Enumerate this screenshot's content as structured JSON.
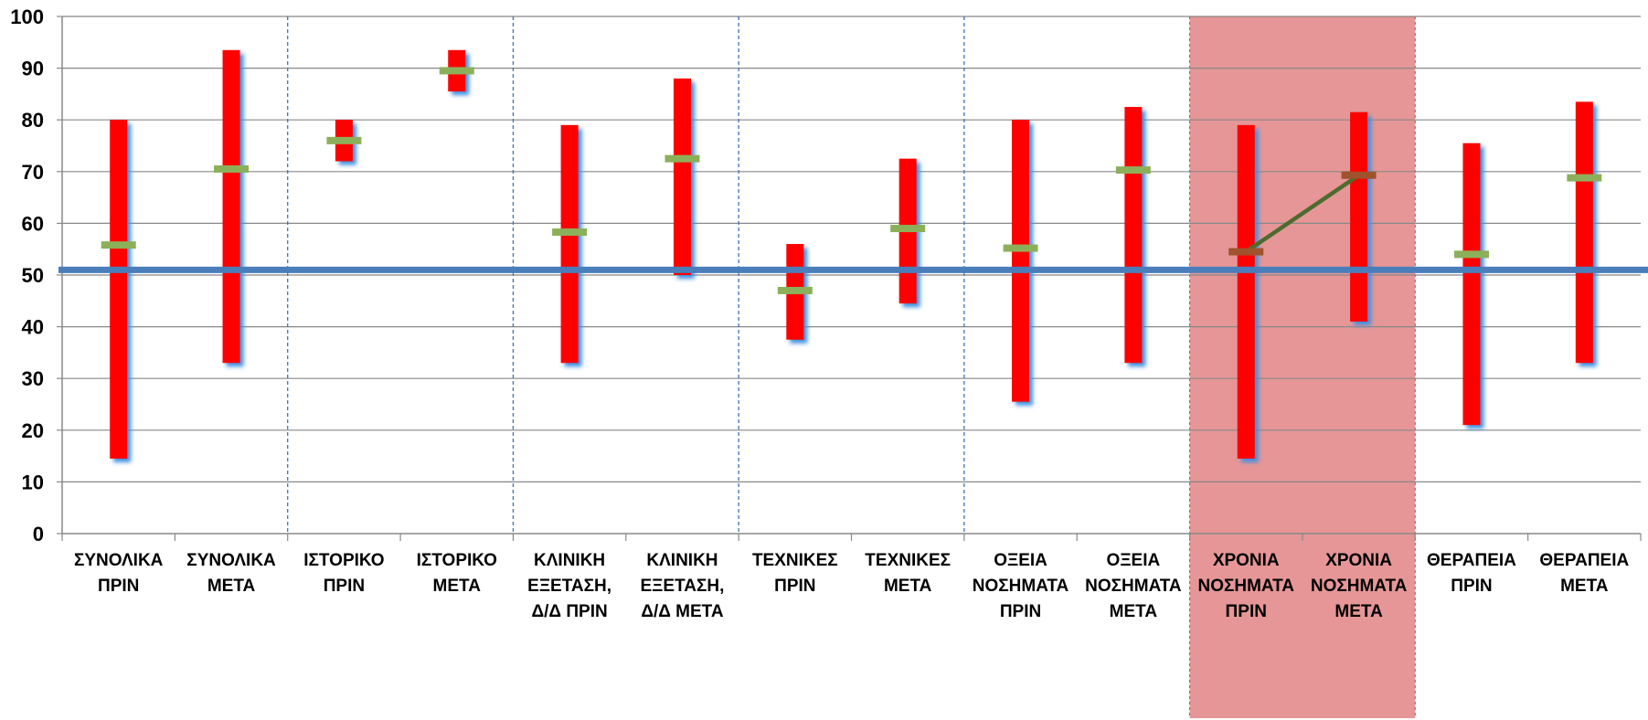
{
  "chart_data": {
    "type": "bar",
    "subtype": "floating range with mean markers",
    "ylim": [
      0,
      100
    ],
    "yticks": [
      0,
      10,
      20,
      30,
      40,
      50,
      60,
      70,
      80,
      90,
      100
    ],
    "grid": true,
    "categories": [
      [
        "ΣΥΝΟΛΙΚΑ",
        "ΠΡΙΝ"
      ],
      [
        "ΣΥΝΟΛΙΚΑ",
        "ΜΕΤΑ"
      ],
      [
        "ΙΣΤΟΡΙΚΟ",
        "ΠΡΙΝ"
      ],
      [
        "ΙΣΤΟΡΙΚΟ",
        "ΜΕΤΑ"
      ],
      [
        "ΚΛΙΝΙΚΗ",
        "ΕΞΕΤΑΣΗ,",
        "Δ/Δ ΠΡΙΝ"
      ],
      [
        "ΚΛΙΝΙΚΗ",
        "ΕΞΕΤΑΣΗ,",
        "Δ/Δ ΜΕΤΑ"
      ],
      [
        "ΤΕΧΝΙΚΕΣ",
        "ΠΡΙΝ"
      ],
      [
        "ΤΕΧΝΙΚΕΣ",
        "ΜΕΤΑ"
      ],
      [
        "ΟΞΕΙΑ",
        "ΝΟΣΗΜΑΤΑ",
        "ΠΡΙΝ"
      ],
      [
        "ΟΞΕΙΑ",
        "ΝΟΣΗΜΑΤΑ",
        "ΜΕΤΑ"
      ],
      [
        "ΧΡΟΝΙΑ",
        "ΝΟΣΗΜΑΤΑ",
        "ΠΡΙΝ"
      ],
      [
        "ΧΡΟΝΙΑ",
        "ΝΟΣΗΜΑΤΑ",
        "ΜΕΤΑ"
      ],
      [
        "ΘΕΡΑΠΕΙΑ",
        "ΠΡΙΝ"
      ],
      [
        "ΘΕΡΑΠΕΙΑ",
        "ΜΕΤΑ"
      ]
    ],
    "ranges": [
      [
        14.5,
        80
      ],
      [
        33,
        93.5
      ],
      [
        72,
        80
      ],
      [
        85.5,
        93.5
      ],
      [
        33,
        79
      ],
      [
        50,
        88
      ],
      [
        37.5,
        56
      ],
      [
        44.5,
        72.5
      ],
      [
        25.5,
        80
      ],
      [
        33,
        82.5
      ],
      [
        14.5,
        79
      ],
      [
        41,
        81.5
      ],
      [
        21,
        75.5
      ],
      [
        33,
        83.5
      ]
    ],
    "means": [
      55.8,
      70.5,
      76,
      89.5,
      58.3,
      72.5,
      47,
      59,
      55.2,
      70.3,
      54.5,
      69.3,
      54,
      68.8
    ],
    "reference_line": 51,
    "section_dividers_after_index": [
      1,
      3,
      5,
      7
    ],
    "highlighted_categories": [
      10,
      11
    ],
    "connector": {
      "from_index": 10,
      "to_index": 11
    },
    "colors": {
      "range_bar": "#ff0000",
      "bar_shadow": "#3f8fe0",
      "mean_marker": "#8cb05a",
      "highlighted_mean_marker": "#a0522d",
      "reference_line": "#4a7ebb",
      "connector": "#4e6b2e",
      "highlight_band": "#e69696",
      "highlight_label": "#7a0000",
      "grid": "#888888",
      "divider": "#3f74b8"
    }
  }
}
